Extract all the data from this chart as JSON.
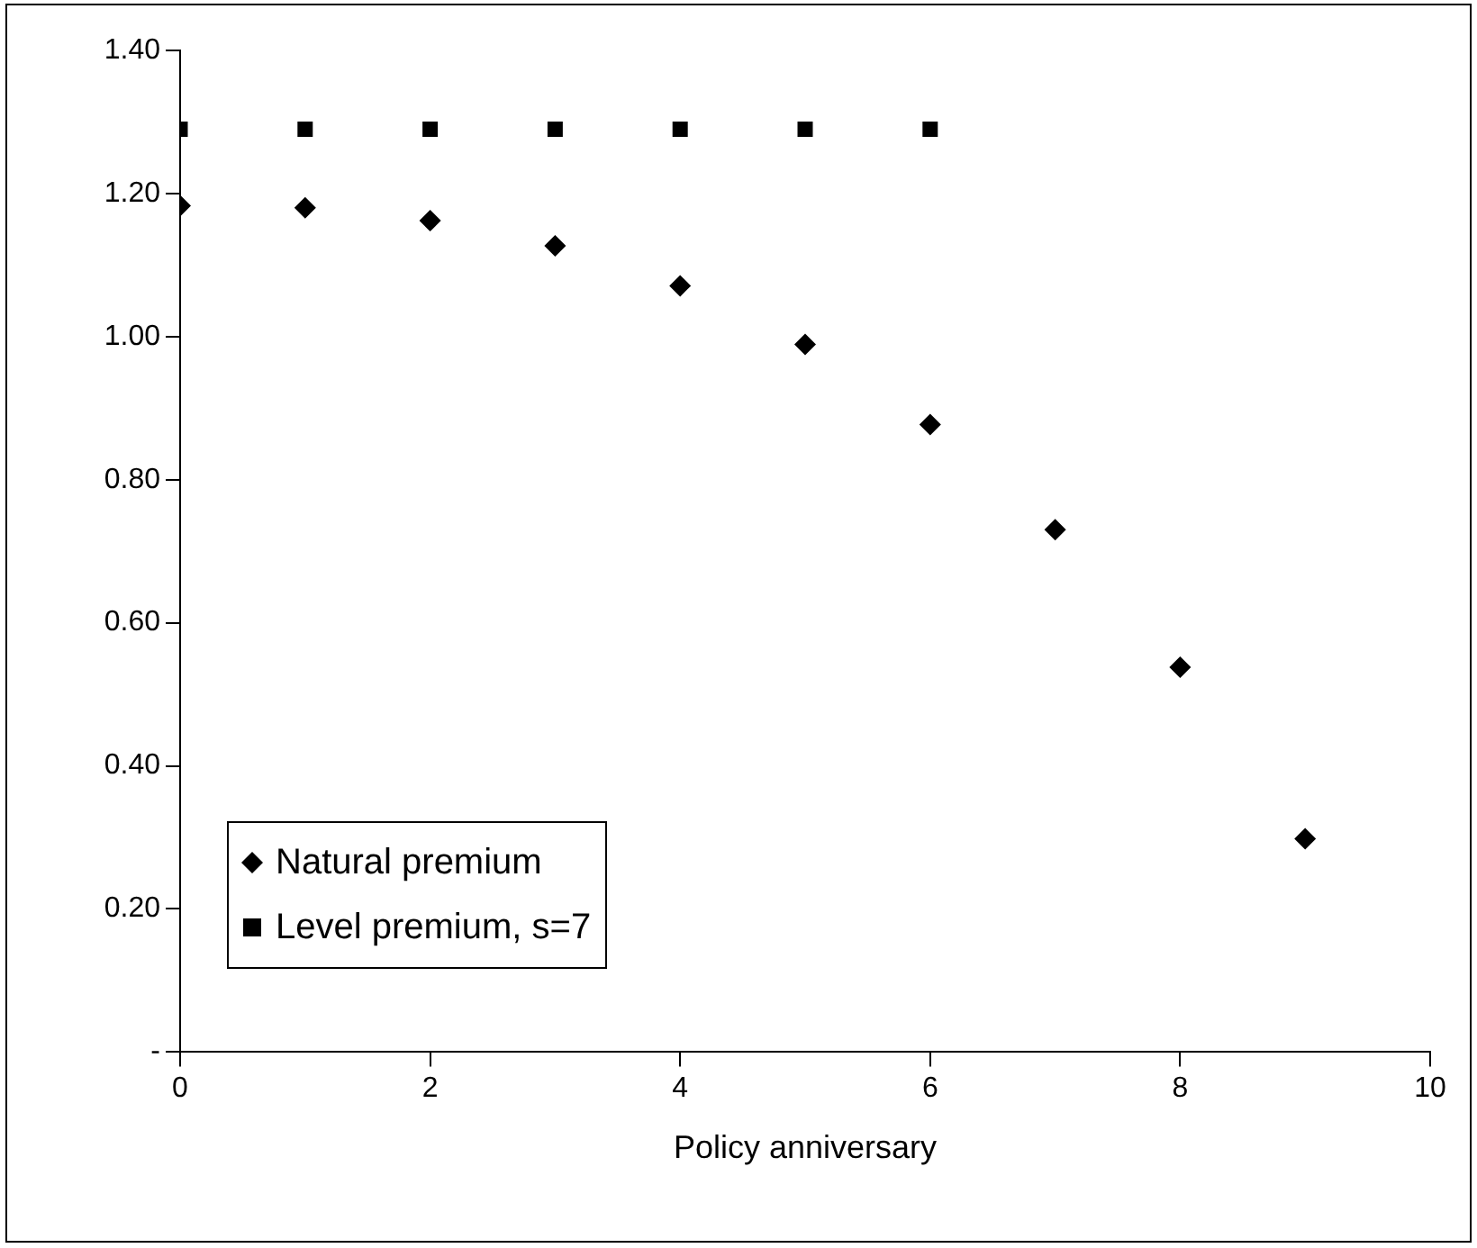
{
  "chart_data": {
    "type": "scatter",
    "xlabel": "Policy anniversary",
    "xlim": [
      0,
      10
    ],
    "xticks": [
      0,
      2,
      4,
      6,
      8,
      10
    ],
    "ylim": [
      0,
      1.4
    ],
    "yticks": [
      {
        "value": 0,
        "label": "-"
      },
      {
        "value": 0.2,
        "label": "0.20"
      },
      {
        "value": 0.4,
        "label": "0.40"
      },
      {
        "value": 0.6,
        "label": "0.60"
      },
      {
        "value": 0.8,
        "label": "0.80"
      },
      {
        "value": 1,
        "label": "1.00"
      },
      {
        "value": 1.2,
        "label": "1.20"
      },
      {
        "value": 1.4,
        "label": "1.40"
      }
    ],
    "grid": false,
    "legend": "bottom left",
    "series": [
      {
        "name": "Natural premium",
        "color": "#000000",
        "marker": "diamond",
        "x": [
          0,
          1,
          2,
          3,
          4,
          5,
          6,
          7,
          8,
          9
        ],
        "values": [
          1.183,
          1.18,
          1.162,
          1.127,
          1.071,
          0.989,
          0.877,
          0.73,
          0.538,
          0.298
        ]
      },
      {
        "name": "Level premium, s=7",
        "color": "#000000",
        "marker": "square",
        "x": [
          0,
          1,
          2,
          3,
          4,
          5,
          6
        ],
        "values": [
          1.29,
          1.29,
          1.29,
          1.29,
          1.29,
          1.29,
          1.29
        ]
      }
    ]
  }
}
